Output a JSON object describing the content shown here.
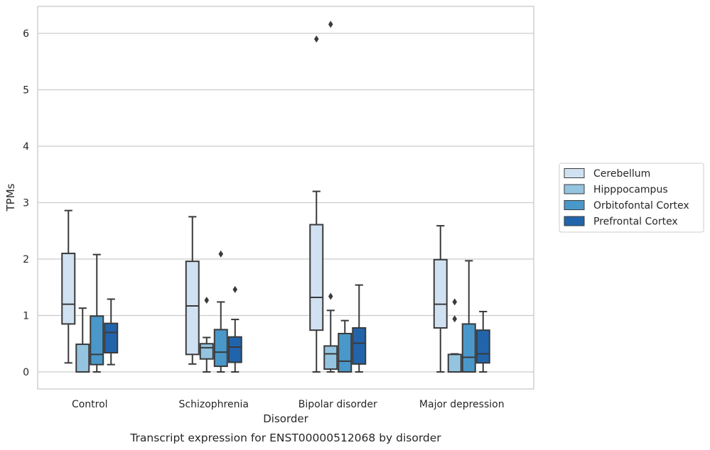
{
  "chart_data": {
    "type": "box",
    "xlabel": "Disorder",
    "ylabel": "TPMs",
    "caption": "Transcript expression for ENST00000512068 by disorder",
    "ylim": [
      -0.3,
      6.5
    ],
    "yticks": [
      0,
      1,
      2,
      3,
      4,
      5,
      6
    ],
    "grid": "horizontal",
    "legend_position": "right",
    "categories": [
      "Control",
      "Schizophrenia",
      "Bipolar disorder",
      "Major depression"
    ],
    "series": [
      {
        "name": "Cerebellum",
        "color": "#d0e1f2",
        "boxes": [
          {
            "whislo": 0.16,
            "q1": 0.85,
            "med": 1.2,
            "q3": 2.1,
            "whishi": 2.86,
            "fliers": []
          },
          {
            "whislo": 0.14,
            "q1": 0.31,
            "med": 1.17,
            "q3": 1.96,
            "whishi": 2.75,
            "fliers": []
          },
          {
            "whislo": 0.0,
            "q1": 0.74,
            "med": 1.32,
            "q3": 2.61,
            "whishi": 3.2,
            "fliers": [
              5.9
            ]
          },
          {
            "whislo": 0.0,
            "q1": 0.78,
            "med": 1.2,
            "q3": 1.99,
            "whishi": 2.59,
            "fliers": []
          }
        ]
      },
      {
        "name": "Hipppocampus",
        "color": "#94c4df",
        "boxes": [
          {
            "whislo": 0.0,
            "q1": 0.0,
            "med": 0.0,
            "q3": 0.49,
            "whishi": 1.13,
            "fliers": []
          },
          {
            "whislo": 0.0,
            "q1": 0.23,
            "med": 0.43,
            "q3": 0.5,
            "whishi": 0.61,
            "fliers": [
              1.27
            ]
          },
          {
            "whislo": 0.0,
            "q1": 0.05,
            "med": 0.32,
            "q3": 0.46,
            "whishi": 1.09,
            "fliers": [
              1.34,
              6.16
            ]
          },
          {
            "whislo": 0.0,
            "q1": 0.0,
            "med": 0.0,
            "q3": 0.31,
            "whishi": 0.32,
            "fliers": [
              0.94,
              1.24
            ]
          }
        ]
      },
      {
        "name": "Orbitofontal Cortex",
        "color": "#4a98c9",
        "boxes": [
          {
            "whislo": 0.0,
            "q1": 0.13,
            "med": 0.31,
            "q3": 0.99,
            "whishi": 2.08,
            "fliers": []
          },
          {
            "whislo": 0.0,
            "q1": 0.1,
            "med": 0.35,
            "q3": 0.75,
            "whishi": 1.24,
            "fliers": [
              2.09
            ]
          },
          {
            "whislo": 0.0,
            "q1": 0.0,
            "med": 0.19,
            "q3": 0.68,
            "whishi": 0.91,
            "fliers": []
          },
          {
            "whislo": 0.0,
            "q1": 0.0,
            "med": 0.26,
            "q3": 0.85,
            "whishi": 1.97,
            "fliers": []
          }
        ]
      },
      {
        "name": "Prefrontal Cortex",
        "color": "#2164ab",
        "boxes": [
          {
            "whislo": 0.13,
            "q1": 0.34,
            "med": 0.7,
            "q3": 0.86,
            "whishi": 1.29,
            "fliers": []
          },
          {
            "whislo": 0.0,
            "q1": 0.17,
            "med": 0.44,
            "q3": 0.62,
            "whishi": 0.93,
            "fliers": [
              1.46
            ]
          },
          {
            "whislo": 0.0,
            "q1": 0.14,
            "med": 0.51,
            "q3": 0.78,
            "whishi": 1.54,
            "fliers": []
          },
          {
            "whislo": 0.0,
            "q1": 0.16,
            "med": 0.32,
            "q3": 0.74,
            "whishi": 1.07,
            "fliers": []
          }
        ]
      }
    ]
  }
}
